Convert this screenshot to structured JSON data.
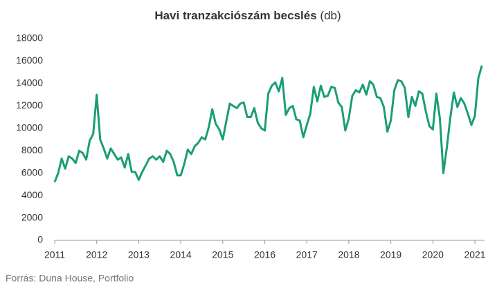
{
  "chart_data": {
    "type": "line",
    "title": "Havi tranzakciószám becslés",
    "unit": "(db)",
    "source": "Forrás: Duna House, Portfolio",
    "x": [
      2011,
      2011.083,
      2011.167,
      2011.25,
      2011.333,
      2011.417,
      2011.5,
      2011.583,
      2011.667,
      2011.75,
      2011.833,
      2011.917,
      2012,
      2012.083,
      2012.167,
      2012.25,
      2012.333,
      2012.417,
      2012.5,
      2012.583,
      2012.667,
      2012.75,
      2012.833,
      2012.917,
      2013,
      2013.083,
      2013.167,
      2013.25,
      2013.333,
      2013.417,
      2013.5,
      2013.583,
      2013.667,
      2013.75,
      2013.833,
      2013.917,
      2014,
      2014.083,
      2014.167,
      2014.25,
      2014.333,
      2014.417,
      2014.5,
      2014.583,
      2014.667,
      2014.75,
      2014.833,
      2014.917,
      2015,
      2015.083,
      2015.167,
      2015.25,
      2015.333,
      2015.417,
      2015.5,
      2015.583,
      2015.667,
      2015.75,
      2015.833,
      2015.917,
      2016,
      2016.083,
      2016.167,
      2016.25,
      2016.333,
      2016.417,
      2016.5,
      2016.583,
      2016.667,
      2016.75,
      2016.833,
      2016.917,
      2017,
      2017.083,
      2017.167,
      2017.25,
      2017.333,
      2017.417,
      2017.5,
      2017.583,
      2017.667,
      2017.75,
      2017.833,
      2017.917,
      2018,
      2018.083,
      2018.167,
      2018.25,
      2018.333,
      2018.417,
      2018.5,
      2018.583,
      2018.667,
      2018.75,
      2018.833,
      2018.917,
      2019,
      2019.083,
      2019.167,
      2019.25,
      2019.333,
      2019.417,
      2019.5,
      2019.583,
      2019.667,
      2019.75,
      2019.833,
      2019.917,
      2020,
      2020.083,
      2020.167,
      2020.25,
      2020.333,
      2020.417,
      2020.5,
      2020.583,
      2020.667,
      2020.75,
      2020.833,
      2020.917,
      2021,
      2021.083,
      2021.167
    ],
    "series": [
      {
        "name": "Havi tranzakciószám",
        "color": "#1a9e77",
        "values": [
          5200,
          6000,
          7300,
          6400,
          7500,
          7300,
          6900,
          8000,
          7800,
          7200,
          8900,
          9500,
          13000,
          9000,
          8200,
          7300,
          8200,
          7700,
          7200,
          7400,
          6500,
          7700,
          6100,
          6100,
          5400,
          6100,
          6700,
          7300,
          7500,
          7200,
          7500,
          7000,
          8000,
          7700,
          7000,
          5800,
          5800,
          6800,
          8100,
          7700,
          8400,
          8700,
          9200,
          9000,
          10100,
          11700,
          10400,
          9900,
          9000,
          10600,
          12200,
          12000,
          11800,
          12200,
          12300,
          11000,
          11000,
          11800,
          10500,
          10000,
          9800,
          13100,
          13800,
          14100,
          13300,
          14500,
          11200,
          11800,
          12000,
          10800,
          10700,
          9200,
          10300,
          11300,
          13700,
          12400,
          13800,
          12800,
          12900,
          13700,
          13600,
          12300,
          11900,
          9800,
          10900,
          12900,
          13400,
          13200,
          13900,
          13000,
          14200,
          13900,
          12800,
          12700,
          11900,
          9700,
          10700,
          13400,
          14300,
          14200,
          13600,
          11000,
          12800,
          12000,
          13300,
          13100,
          11500,
          10200,
          9900,
          13100,
          10900,
          6000,
          8300,
          11000,
          13200,
          11900,
          12700,
          12200,
          11300,
          10300,
          11100,
          14500,
          15600
        ]
      }
    ],
    "xlim": [
      2011,
      2021.23
    ],
    "xticks": [
      2011,
      2012,
      2013,
      2014,
      2015,
      2016,
      2017,
      2018,
      2019,
      2020,
      2021
    ],
    "ylim": [
      0,
      18000
    ],
    "yticks": [
      0,
      2000,
      4000,
      6000,
      8000,
      10000,
      12000,
      14000,
      16000,
      18000
    ],
    "grid": false
  }
}
